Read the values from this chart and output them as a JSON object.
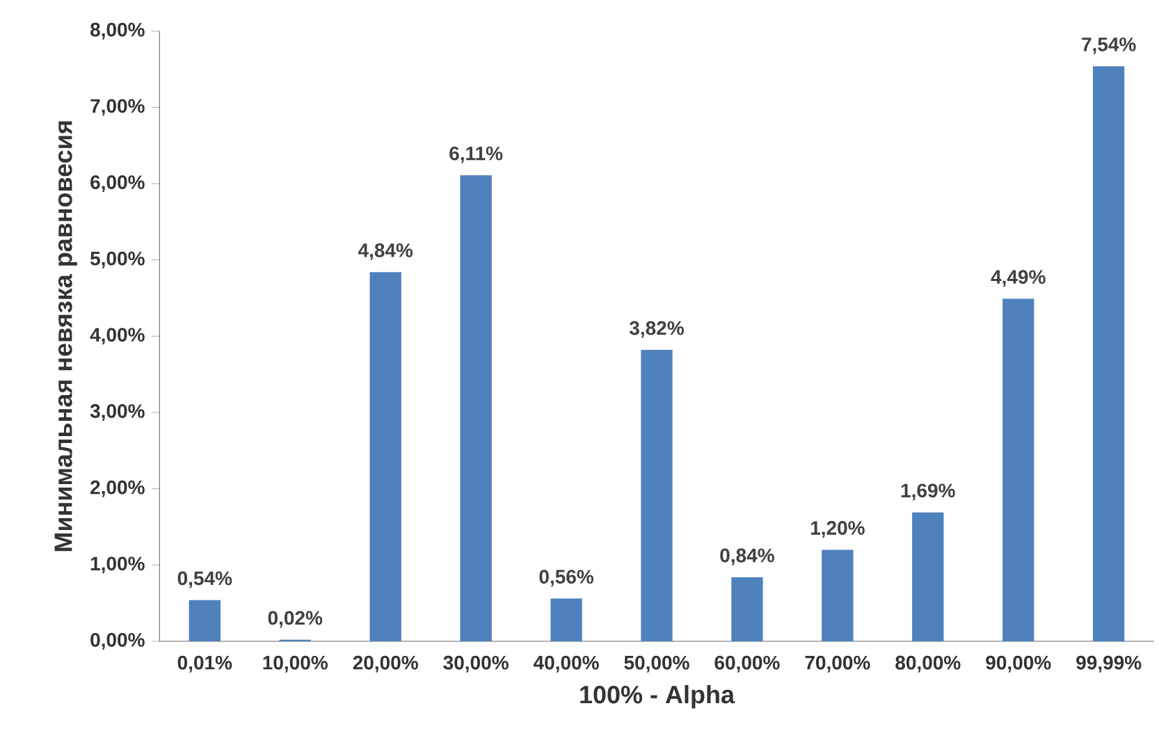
{
  "chart_data": {
    "type": "bar",
    "xlabel": "100% - Alpha",
    "ylabel": "Минимальная невязка равновесия",
    "categories": [
      "0,01%",
      "10,00%",
      "20,00%",
      "30,00%",
      "40,00%",
      "50,00%",
      "60,00%",
      "70,00%",
      "80,00%",
      "90,00%",
      "99,99%"
    ],
    "values": [
      0.54,
      0.02,
      4.84,
      6.11,
      0.56,
      3.82,
      0.84,
      1.2,
      1.69,
      4.49,
      7.54
    ],
    "value_labels": [
      "0,54%",
      "0,02%",
      "4,84%",
      "6,11%",
      "0,56%",
      "3,82%",
      "0,84%",
      "1,20%",
      "1,69%",
      "4,49%",
      "7,54%"
    ],
    "color": "#4f81bd",
    "ylim": [
      0,
      8
    ],
    "yticks": [
      {
        "value": 0,
        "label": "0,00%"
      },
      {
        "value": 1,
        "label": "1,00%"
      },
      {
        "value": 2,
        "label": "2,00%"
      },
      {
        "value": 3,
        "label": "3,00%"
      },
      {
        "value": 4,
        "label": "4,00%"
      },
      {
        "value": 5,
        "label": "5,00%"
      },
      {
        "value": 6,
        "label": "6,00%"
      },
      {
        "value": 7,
        "label": "7,00%"
      },
      {
        "value": 8,
        "label": "8,00%"
      }
    ],
    "grid": false
  }
}
